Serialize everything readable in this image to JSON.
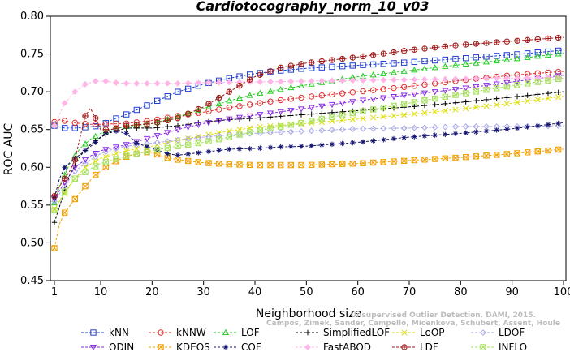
{
  "chart_data": {
    "type": "line",
    "title": "Cardiotocography_norm_10_v03",
    "xlabel": "Neighborhood size",
    "ylabel": "ROC AUC",
    "xlim": [
      1,
      100
    ],
    "ylim": [
      0.45,
      0.8
    ],
    "xticks": [
      1,
      10,
      20,
      30,
      40,
      50,
      60,
      70,
      80,
      90,
      100
    ],
    "yticks": [
      0.45,
      0.5,
      0.55,
      0.6,
      0.65,
      0.7,
      0.75,
      0.8
    ],
    "ytick_labels": [
      "0.45",
      "0.50",
      "0.55",
      "0.60",
      "0.65",
      "0.70",
      "0.75",
      "0.80"
    ],
    "grid": false,
    "legend_position": "bottom",
    "watermark": "Campos, Zimek, Sander, Campello, Micenkova, Schubert, Assent, Houle",
    "watermark_line1": "Unsupervised Outlier Detection. DAMI, 2015.",
    "series": [
      {
        "name": "kNN",
        "color": "#1f3fd0",
        "marker": "square",
        "points": [
          [
            1,
            0.655
          ],
          [
            3,
            0.652
          ],
          [
            5,
            0.652
          ],
          [
            7,
            0.653
          ],
          [
            10,
            0.655
          ],
          [
            12,
            0.662
          ],
          [
            15,
            0.67
          ],
          [
            20,
            0.685
          ],
          [
            25,
            0.7
          ],
          [
            30,
            0.71
          ],
          [
            35,
            0.718
          ],
          [
            40,
            0.724
          ],
          [
            45,
            0.728
          ],
          [
            50,
            0.731
          ],
          [
            55,
            0.733
          ],
          [
            60,
            0.735
          ],
          [
            70,
            0.739
          ],
          [
            80,
            0.744
          ],
          [
            90,
            0.749
          ],
          [
            100,
            0.755
          ]
        ]
      },
      {
        "name": "kNNW",
        "color": "#e03030",
        "marker": "circle",
        "points": [
          [
            1,
            0.66
          ],
          [
            2,
            0.663
          ],
          [
            4,
            0.66
          ],
          [
            6,
            0.658
          ],
          [
            8,
            0.657
          ],
          [
            10,
            0.657
          ],
          [
            15,
            0.658
          ],
          [
            20,
            0.662
          ],
          [
            25,
            0.668
          ],
          [
            30,
            0.673
          ],
          [
            35,
            0.679
          ],
          [
            40,
            0.684
          ],
          [
            45,
            0.689
          ],
          [
            50,
            0.693
          ],
          [
            60,
            0.7
          ],
          [
            70,
            0.707
          ],
          [
            80,
            0.715
          ],
          [
            90,
            0.722
          ],
          [
            100,
            0.727
          ]
        ]
      },
      {
        "name": "LOF",
        "color": "#22cc22",
        "marker": "triangle",
        "points": [
          [
            1,
            0.553
          ],
          [
            2,
            0.575
          ],
          [
            4,
            0.605
          ],
          [
            6,
            0.625
          ],
          [
            8,
            0.637
          ],
          [
            10,
            0.645
          ],
          [
            12,
            0.65
          ],
          [
            15,
            0.654
          ],
          [
            20,
            0.658
          ],
          [
            25,
            0.667
          ],
          [
            30,
            0.678
          ],
          [
            35,
            0.688
          ],
          [
            40,
            0.697
          ],
          [
            50,
            0.709
          ],
          [
            60,
            0.72
          ],
          [
            70,
            0.728
          ],
          [
            80,
            0.736
          ],
          [
            90,
            0.743
          ],
          [
            100,
            0.751
          ]
        ]
      },
      {
        "name": "SimplifiedLOF",
        "color": "#000000",
        "marker": "plus",
        "points": [
          [
            1,
            0.527
          ],
          [
            2,
            0.548
          ],
          [
            3,
            0.57
          ],
          [
            4,
            0.59
          ],
          [
            6,
            0.615
          ],
          [
            8,
            0.63
          ],
          [
            10,
            0.64
          ],
          [
            12,
            0.646
          ],
          [
            15,
            0.652
          ],
          [
            20,
            0.652
          ],
          [
            25,
            0.655
          ],
          [
            30,
            0.66
          ],
          [
            35,
            0.663
          ],
          [
            40,
            0.665
          ],
          [
            50,
            0.67
          ],
          [
            60,
            0.675
          ],
          [
            70,
            0.68
          ],
          [
            80,
            0.686
          ],
          [
            90,
            0.693
          ],
          [
            100,
            0.7
          ]
        ]
      },
      {
        "name": "LoOP",
        "color": "#dddd00",
        "marker": "x",
        "points": [
          [
            1,
            0.545
          ],
          [
            3,
            0.565
          ],
          [
            5,
            0.585
          ],
          [
            7,
            0.6
          ],
          [
            10,
            0.612
          ],
          [
            15,
            0.622
          ],
          [
            20,
            0.628
          ],
          [
            25,
            0.636
          ],
          [
            30,
            0.642
          ],
          [
            35,
            0.648
          ],
          [
            40,
            0.653
          ],
          [
            50,
            0.658
          ],
          [
            60,
            0.664
          ],
          [
            70,
            0.67
          ],
          [
            80,
            0.677
          ],
          [
            90,
            0.685
          ],
          [
            100,
            0.694
          ]
        ]
      },
      {
        "name": "LDOF",
        "color": "#a9a9e6",
        "marker": "diamond",
        "points": [
          [
            1,
            0.555
          ],
          [
            3,
            0.575
          ],
          [
            5,
            0.595
          ],
          [
            8,
            0.61
          ],
          [
            10,
            0.618
          ],
          [
            12,
            0.623
          ],
          [
            15,
            0.628
          ],
          [
            20,
            0.632
          ],
          [
            25,
            0.636
          ],
          [
            30,
            0.64
          ],
          [
            35,
            0.643
          ],
          [
            40,
            0.645
          ],
          [
            50,
            0.648
          ],
          [
            60,
            0.651
          ],
          [
            70,
            0.652
          ],
          [
            80,
            0.654
          ],
          [
            90,
            0.654
          ],
          [
            100,
            0.655
          ]
        ]
      },
      {
        "name": "ODIN",
        "color": "#8a2be2",
        "marker": "triangle-down",
        "points": [
          [
            1,
            0.558
          ],
          [
            3,
            0.58
          ],
          [
            5,
            0.6
          ],
          [
            8,
            0.615
          ],
          [
            10,
            0.622
          ],
          [
            15,
            0.63
          ],
          [
            20,
            0.64
          ],
          [
            25,
            0.65
          ],
          [
            30,
            0.658
          ],
          [
            35,
            0.664
          ],
          [
            40,
            0.669
          ],
          [
            50,
            0.678
          ],
          [
            60,
            0.688
          ],
          [
            70,
            0.696
          ],
          [
            80,
            0.704
          ],
          [
            90,
            0.713
          ],
          [
            100,
            0.722
          ]
        ]
      },
      {
        "name": "KDEOS",
        "color": "#f0a000",
        "marker": "square-x",
        "points": [
          [
            1,
            0.493
          ],
          [
            2,
            0.525
          ],
          [
            3,
            0.54
          ],
          [
            5,
            0.558
          ],
          [
            7,
            0.575
          ],
          [
            9,
            0.59
          ],
          [
            11,
            0.6
          ],
          [
            13,
            0.608
          ],
          [
            15,
            0.614
          ],
          [
            18,
            0.62
          ],
          [
            20,
            0.62
          ],
          [
            22,
            0.614
          ],
          [
            25,
            0.61
          ],
          [
            30,
            0.606
          ],
          [
            35,
            0.604
          ],
          [
            40,
            0.603
          ],
          [
            50,
            0.603
          ],
          [
            60,
            0.605
          ],
          [
            70,
            0.609
          ],
          [
            80,
            0.613
          ],
          [
            90,
            0.618
          ],
          [
            100,
            0.624
          ]
        ]
      },
      {
        "name": "COF",
        "color": "#141470",
        "marker": "asterisk",
        "points": [
          [
            1,
            0.56
          ],
          [
            2,
            0.585
          ],
          [
            3,
            0.6
          ],
          [
            5,
            0.612
          ],
          [
            7,
            0.622
          ],
          [
            9,
            0.633
          ],
          [
            11,
            0.646
          ],
          [
            13,
            0.648
          ],
          [
            15,
            0.645
          ],
          [
            17,
            0.632
          ],
          [
            20,
            0.625
          ],
          [
            23,
            0.618
          ],
          [
            25,
            0.616
          ],
          [
            30,
            0.62
          ],
          [
            35,
            0.624
          ],
          [
            40,
            0.625
          ],
          [
            45,
            0.627
          ],
          [
            50,
            0.628
          ],
          [
            60,
            0.633
          ],
          [
            70,
            0.64
          ],
          [
            80,
            0.645
          ],
          [
            90,
            0.651
          ],
          [
            100,
            0.659
          ]
        ]
      },
      {
        "name": "FastABOD",
        "color": "#ffb6e6",
        "marker": "diamond-filled",
        "points": [
          [
            1,
            0.655
          ],
          [
            3,
            0.685
          ],
          [
            5,
            0.7
          ],
          [
            7,
            0.71
          ],
          [
            9,
            0.714
          ],
          [
            11,
            0.714
          ],
          [
            13,
            0.712
          ],
          [
            15,
            0.711
          ],
          [
            20,
            0.711
          ],
          [
            25,
            0.711
          ],
          [
            30,
            0.712
          ],
          [
            40,
            0.713
          ],
          [
            50,
            0.714
          ],
          [
            60,
            0.715
          ],
          [
            70,
            0.716
          ],
          [
            80,
            0.717
          ],
          [
            90,
            0.718
          ],
          [
            100,
            0.719
          ]
        ]
      },
      {
        "name": "LDF",
        "color": "#a01818",
        "marker": "circle-plus",
        "points": [
          [
            1,
            0.562
          ],
          [
            2,
            0.575
          ],
          [
            3,
            0.585
          ],
          [
            4,
            0.595
          ],
          [
            5,
            0.61
          ],
          [
            6,
            0.64
          ],
          [
            7,
            0.668
          ],
          [
            8,
            0.678
          ],
          [
            9,
            0.665
          ],
          [
            10,
            0.65
          ],
          [
            12,
            0.65
          ],
          [
            15,
            0.655
          ],
          [
            20,
            0.658
          ],
          [
            25,
            0.665
          ],
          [
            30,
            0.68
          ],
          [
            35,
            0.7
          ],
          [
            40,
            0.72
          ],
          [
            45,
            0.732
          ],
          [
            50,
            0.738
          ],
          [
            55,
            0.742
          ],
          [
            60,
            0.746
          ],
          [
            70,
            0.755
          ],
          [
            80,
            0.762
          ],
          [
            90,
            0.767
          ],
          [
            100,
            0.772
          ]
        ]
      },
      {
        "name": "INFLO",
        "color": "#a8e060",
        "marker": "square-x",
        "points": [
          [
            1,
            0.543
          ],
          [
            3,
            0.568
          ],
          [
            5,
            0.585
          ],
          [
            8,
            0.598
          ],
          [
            10,
            0.605
          ],
          [
            15,
            0.615
          ],
          [
            20,
            0.622
          ],
          [
            25,
            0.628
          ],
          [
            30,
            0.633
          ],
          [
            35,
            0.64
          ],
          [
            40,
            0.648
          ],
          [
            50,
            0.66
          ],
          [
            60,
            0.673
          ],
          [
            70,
            0.685
          ],
          [
            80,
            0.697
          ],
          [
            90,
            0.708
          ],
          [
            100,
            0.718
          ]
        ]
      }
    ]
  }
}
